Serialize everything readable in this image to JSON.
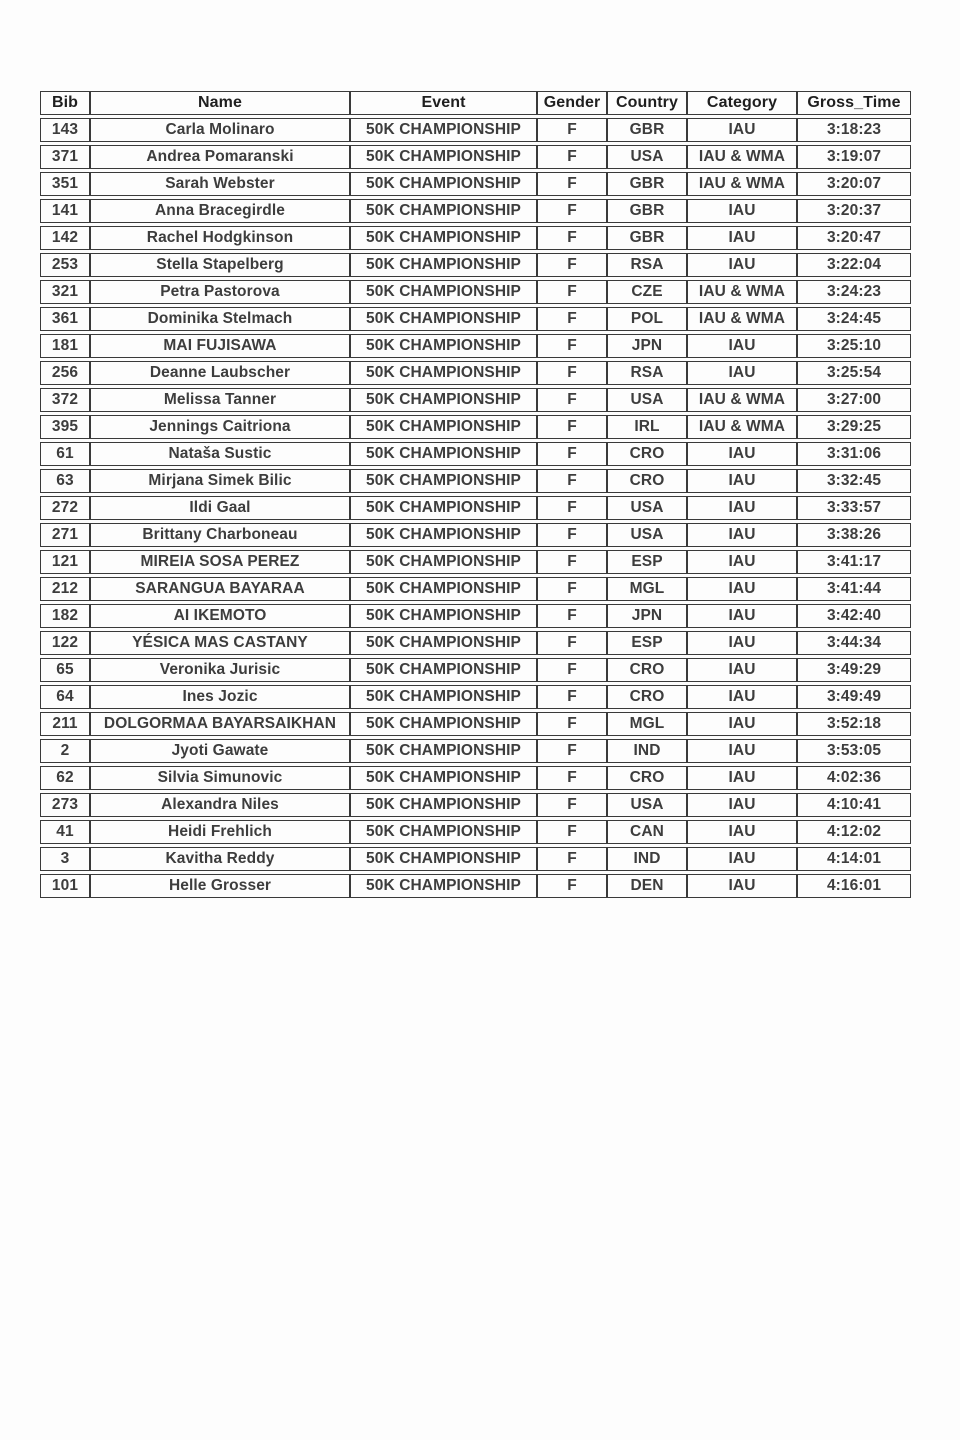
{
  "table": {
    "columns": [
      "Bib",
      "Name",
      "Event",
      "Gender",
      "Country",
      "Category",
      "Gross_Time"
    ],
    "rows": [
      [
        "143",
        "Carla Molinaro",
        "50K CHAMPIONSHIP",
        "F",
        "GBR",
        "IAU",
        "3:18:23"
      ],
      [
        "371",
        "Andrea Pomaranski",
        "50K CHAMPIONSHIP",
        "F",
        "USA",
        "IAU & WMA",
        "3:19:07"
      ],
      [
        "351",
        "Sarah Webster",
        "50K CHAMPIONSHIP",
        "F",
        "GBR",
        "IAU & WMA",
        "3:20:07"
      ],
      [
        "141",
        "Anna Bracegirdle",
        "50K CHAMPIONSHIP",
        "F",
        "GBR",
        "IAU",
        "3:20:37"
      ],
      [
        "142",
        "Rachel Hodgkinson",
        "50K CHAMPIONSHIP",
        "F",
        "GBR",
        "IAU",
        "3:20:47"
      ],
      [
        "253",
        "Stella Stapelberg",
        "50K CHAMPIONSHIP",
        "F",
        "RSA",
        "IAU",
        "3:22:04"
      ],
      [
        "321",
        "Petra Pastorova",
        "50K CHAMPIONSHIP",
        "F",
        "CZE",
        "IAU & WMA",
        "3:24:23"
      ],
      [
        "361",
        "Dominika Stelmach",
        "50K CHAMPIONSHIP",
        "F",
        "POL",
        "IAU & WMA",
        "3:24:45"
      ],
      [
        "181",
        "MAI FUJISAWA",
        "50K CHAMPIONSHIP",
        "F",
        "JPN",
        "IAU",
        "3:25:10"
      ],
      [
        "256",
        "Deanne Laubscher",
        "50K CHAMPIONSHIP",
        "F",
        "RSA",
        "IAU",
        "3:25:54"
      ],
      [
        "372",
        "Melissa Tanner",
        "50K CHAMPIONSHIP",
        "F",
        "USA",
        "IAU & WMA",
        "3:27:00"
      ],
      [
        "395",
        "Jennings Caitriona",
        "50K CHAMPIONSHIP",
        "F",
        "IRL",
        "IAU & WMA",
        "3:29:25"
      ],
      [
        "61",
        "Nataša Sustic",
        "50K CHAMPIONSHIP",
        "F",
        "CRO",
        "IAU",
        "3:31:06"
      ],
      [
        "63",
        "Mirjana Simek Bilic",
        "50K CHAMPIONSHIP",
        "F",
        "CRO",
        "IAU",
        "3:32:45"
      ],
      [
        "272",
        "Ildi Gaal",
        "50K CHAMPIONSHIP",
        "F",
        "USA",
        "IAU",
        "3:33:57"
      ],
      [
        "271",
        "Brittany Charboneau",
        "50K CHAMPIONSHIP",
        "F",
        "USA",
        "IAU",
        "3:38:26"
      ],
      [
        "121",
        "MIREIA SOSA PEREZ",
        "50K CHAMPIONSHIP",
        "F",
        "ESP",
        "IAU",
        "3:41:17"
      ],
      [
        "212",
        "SARANGUA BAYARAA",
        "50K CHAMPIONSHIP",
        "F",
        "MGL",
        "IAU",
        "3:41:44"
      ],
      [
        "182",
        "AI IKEMOTO",
        "50K CHAMPIONSHIP",
        "F",
        "JPN",
        "IAU",
        "3:42:40"
      ],
      [
        "122",
        "YÉSICA MAS CASTANY",
        "50K CHAMPIONSHIP",
        "F",
        "ESP",
        "IAU",
        "3:44:34"
      ],
      [
        "65",
        "Veronika Jurisic",
        "50K CHAMPIONSHIP",
        "F",
        "CRO",
        "IAU",
        "3:49:29"
      ],
      [
        "64",
        "Ines Jozic",
        "50K CHAMPIONSHIP",
        "F",
        "CRO",
        "IAU",
        "3:49:49"
      ],
      [
        "211",
        "DOLGORMAA BAYARSAIKHAN",
        "50K CHAMPIONSHIP",
        "F",
        "MGL",
        "IAU",
        "3:52:18"
      ],
      [
        "2",
        "Jyoti Gawate",
        "50K CHAMPIONSHIP",
        "F",
        "IND",
        "IAU",
        "3:53:05"
      ],
      [
        "62",
        "Silvia Simunovic",
        "50K CHAMPIONSHIP",
        "F",
        "CRO",
        "IAU",
        "4:02:36"
      ],
      [
        "273",
        "Alexandra Niles",
        "50K CHAMPIONSHIP",
        "F",
        "USA",
        "IAU",
        "4:10:41"
      ],
      [
        "41",
        "Heidi Frehlich",
        "50K CHAMPIONSHIP",
        "F",
        "CAN",
        "IAU",
        "4:12:02"
      ],
      [
        "3",
        "Kavitha Reddy",
        "50K CHAMPIONSHIP",
        "F",
        "IND",
        "IAU",
        "4:14:01"
      ],
      [
        "101",
        "Helle Grosser",
        "50K CHAMPIONSHIP",
        "F",
        "DEN",
        "IAU",
        "4:16:01"
      ]
    ]
  }
}
